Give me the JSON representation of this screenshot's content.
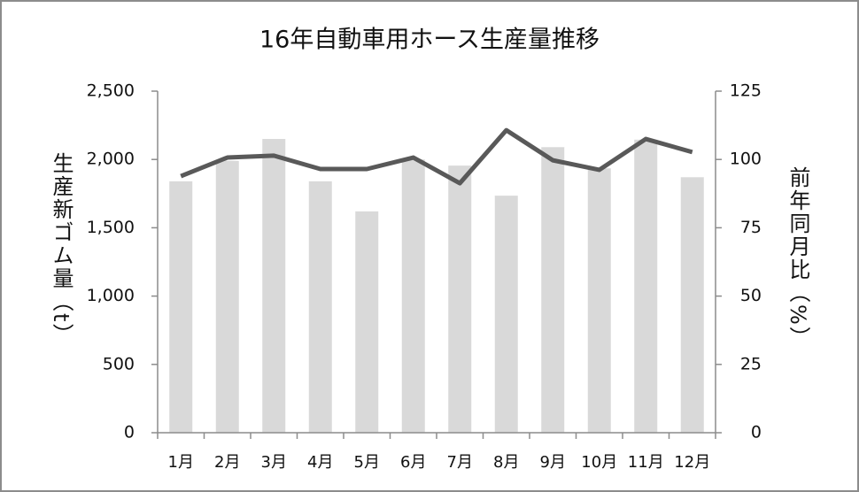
{
  "chart_data": {
    "type": "bar-line",
    "title": "16年自動車用ホース生産量推移",
    "y_label": "生産新ゴム量（t）",
    "y2_label": "前年同月比（%）",
    "categories": [
      "1月",
      "2月",
      "3月",
      "4月",
      "5月",
      "6月",
      "7月",
      "8月",
      "9月",
      "10月",
      "11月",
      "12月"
    ],
    "series": [
      {
        "type": "bar",
        "color": "#d9d9d9",
        "values": [
          1840,
          1990,
          2150,
          1840,
          1620,
          2000,
          1955,
          1735,
          2090,
          1935,
          2145,
          1870
        ]
      },
      {
        "type": "line",
        "axis": "y2",
        "color": "#595959",
        "values": [
          93.9,
          100.7,
          101.4,
          96.5,
          96.5,
          100.7,
          91.3,
          110.7,
          99.7,
          96.2,
          107.5,
          102.7
        ]
      }
    ],
    "ylim": [
      0,
      2500
    ],
    "yticks": [
      0,
      {
        "value": 500,
        "label": "500"
      },
      {
        "value": 1000,
        "label": "1,000"
      },
      {
        "value": 1500,
        "label": "1,500"
      },
      {
        "value": 2000,
        "label": "2,000"
      },
      {
        "value": 2500,
        "label": "2,500"
      }
    ],
    "y2lim": [
      0,
      125
    ],
    "y2ticks": [
      0,
      25,
      50,
      75,
      100,
      125
    ]
  }
}
